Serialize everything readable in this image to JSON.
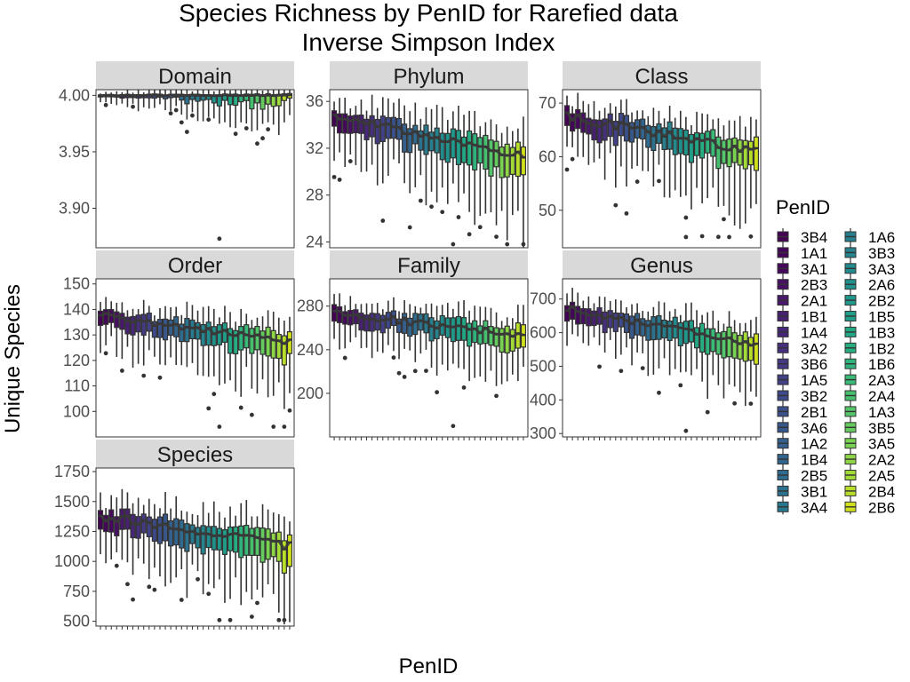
{
  "title_line1": "Species Richness by PenID for Rarefied data",
  "title_line2": "Inverse Simpson Index",
  "xlabel": "PenID",
  "ylabel": "Unique Species",
  "legend_title": "PenID",
  "pens": [
    "3B4",
    "1A1",
    "3A1",
    "2B3",
    "2A1",
    "1B1",
    "1A4",
    "3A2",
    "3B6",
    "1A5",
    "3B2",
    "2B1",
    "3A6",
    "1A2",
    "1B4",
    "2B5",
    "3B1",
    "3A4",
    "1A6",
    "3B3",
    "3A3",
    "2A6",
    "2B2",
    "1B5",
    "1B3",
    "1B2",
    "1B6",
    "2A3",
    "2A4",
    "1A3",
    "3B5",
    "3A5",
    "2A2",
    "2A5",
    "2B4",
    "2B6"
  ],
  "colors": [
    "#440154",
    "#450559",
    "#46085c",
    "#471063",
    "#48186a",
    "#482071",
    "#472878",
    "#46307e",
    "#443983",
    "#424086",
    "#3e4989",
    "#3b518b",
    "#38588c",
    "#355f8d",
    "#32658e",
    "#2f6b8e",
    "#2c728e",
    "#29798e",
    "#277f8e",
    "#25848e",
    "#228b8d",
    "#20928c",
    "#1f988b",
    "#1f9e89",
    "#22a785",
    "#26ad81",
    "#2eb37c",
    "#39ba76",
    "#46c06f",
    "#54c568",
    "#65cb5e",
    "#79d151",
    "#8ed645",
    "#a2da37",
    "#b8de29",
    "#d0e11c",
    "#e5e419",
    "#fde725"
  ],
  "chart_data": {
    "type": "boxplot",
    "title": "Species Richness by PenID for Rarefied data\nInverse Simpson Index",
    "xlabel": "PenID",
    "ylabel": "Unique Species",
    "panels": [
      {
        "name": "Domain",
        "ylim": [
          3.865,
          4.005
        ],
        "ticks": [
          4.0,
          3.95,
          3.9
        ],
        "tick_labels": [
          "4.00",
          "3.95",
          "3.90"
        ],
        "median": [
          4.0,
          4.0
        ],
        "box_span": [
          0.0015,
          0.003
        ],
        "box_off": [
          0,
          0.012
        ],
        "whisker_span": [
          0.003,
          0.01
        ],
        "whisker_low_span": [
          0.006,
          0.022
        ],
        "outlier_min": 3.873
      },
      {
        "name": "Phylum",
        "ylim": [
          23.5,
          37.0
        ],
        "ticks": [
          36,
          32,
          28,
          24
        ],
        "tick_labels": [
          "36",
          "32",
          "28",
          "24"
        ],
        "median": [
          34.8,
          31.3
        ],
        "box_span": [
          1.2,
          2.6
        ],
        "box_off": [
          0,
          0
        ],
        "whisker_span": [
          1.5,
          2.5
        ],
        "whisker_low_span": [
          2.5,
          5.0
        ],
        "outlier_min": 23.8
      },
      {
        "name": "Class",
        "ylim": [
          43.0,
          72.5
        ],
        "ticks": [
          70,
          60,
          50
        ],
        "tick_labels": [
          "70",
          "60",
          "50"
        ],
        "median": [
          67.5,
          61.0
        ],
        "box_span": [
          3.0,
          4.5
        ],
        "box_off": [
          0,
          0
        ],
        "whisker_span": [
          3.0,
          4.5
        ],
        "whisker_low_span": [
          5.0,
          10.0
        ],
        "outlier_min": 45.0
      },
      {
        "name": "Order",
        "ylim": [
          90.0,
          152.0
        ],
        "ticks": [
          150,
          140,
          130,
          120,
          110,
          100
        ],
        "tick_labels": [
          "150",
          "140",
          "130",
          "120",
          "110",
          "100"
        ],
        "median": [
          138.0,
          127.0
        ],
        "box_span": [
          5.0,
          9.0
        ],
        "box_off": [
          0,
          0
        ],
        "whisker_span": [
          5.0,
          8.0
        ],
        "whisker_low_span": [
          9.0,
          16.0
        ],
        "outlier_min": 94.0
      },
      {
        "name": "Family",
        "ylim": [
          160.0,
          305.0
        ],
        "ticks": [
          280,
          240,
          200
        ],
        "tick_labels": [
          "280",
          "240",
          "200"
        ],
        "median": [
          274.0,
          253.0
        ],
        "box_span": [
          12.0,
          20.0
        ],
        "box_off": [
          0,
          0
        ],
        "whisker_span": [
          12.0,
          18.0
        ],
        "whisker_low_span": [
          20.0,
          35.0
        ],
        "outlier_min": 170.0
      },
      {
        "name": "Genus",
        "ylim": [
          290.0,
          760.0
        ],
        "ticks": [
          700,
          600,
          500,
          400,
          300
        ],
        "tick_labels": [
          "700",
          "600",
          "500",
          "400",
          "300"
        ],
        "median": [
          672.0,
          565.0
        ],
        "box_span": [
          40.0,
          70.0
        ],
        "box_off": [
          0,
          0
        ],
        "whisker_span": [
          40.0,
          60.0
        ],
        "whisker_low_span": [
          60.0,
          120.0
        ],
        "outlier_min": 308.0
      },
      {
        "name": "Species",
        "ylim": [
          460.0,
          1780.0
        ],
        "ticks": [
          1750,
          1500,
          1250,
          1000,
          750,
          500
        ],
        "tick_labels": [
          "1750",
          "1500",
          "1250",
          "1000",
          "750",
          "500"
        ],
        "median": [
          1380.0,
          1130.0
        ],
        "box_span": [
          150.0,
          220.0
        ],
        "box_off": [
          0,
          0
        ],
        "whisker_span": [
          150.0,
          220.0
        ],
        "whisker_low_span": [
          250.0,
          400.0
        ],
        "outlier_min": 510.0
      }
    ]
  }
}
